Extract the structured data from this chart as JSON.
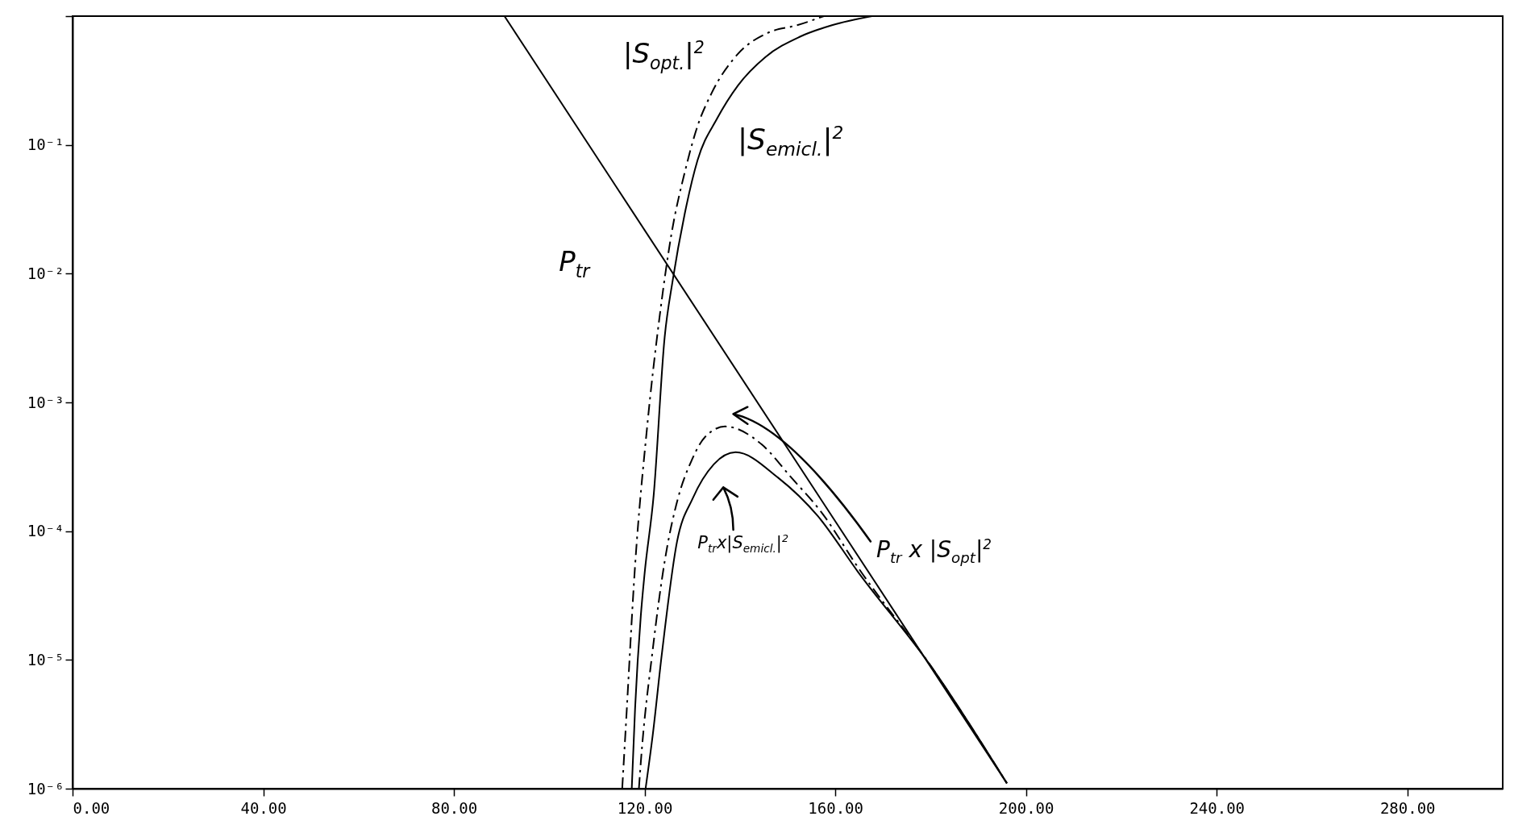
{
  "chart_data": {
    "type": "line",
    "log": "y",
    "legend": false,
    "xlim": [
      0,
      300
    ],
    "ylim": [
      1e-06,
      1
    ],
    "xticks": [
      {
        "value": 0,
        "label": "0.00"
      },
      {
        "value": 40,
        "label": "40.00"
      },
      {
        "value": 80,
        "label": "80.00"
      },
      {
        "value": 120,
        "label": "120.00"
      },
      {
        "value": 160,
        "label": "160.00"
      },
      {
        "value": 200,
        "label": "200.00"
      },
      {
        "value": 240,
        "label": "240.00"
      },
      {
        "value": 280,
        "label": "280.00"
      }
    ],
    "yticks": [
      {
        "value": 1e-06,
        "label": "10⁻⁶"
      },
      {
        "value": 1e-05,
        "label": "10⁻⁵"
      },
      {
        "value": 0.0001,
        "label": "10⁻⁴"
      },
      {
        "value": 0.001,
        "label": "10⁻³"
      },
      {
        "value": 0.01,
        "label": "10⁻²"
      },
      {
        "value": 0.1,
        "label": "10⁻¹"
      },
      {
        "value": 1,
        "label": null
      }
    ],
    "series": [
      {
        "name": "P$_{tr}$",
        "color": "#000000",
        "line_style": "solid",
        "x": [
          90.6,
          196
        ],
        "values": [
          1,
          1.1e-06
        ]
      },
      {
        "name": "|S$_{opt.}$|$^{2}$",
        "color": "#000000",
        "line_style": "dashed",
        "x": [
          115.3,
          116.0,
          118.0,
          120.5,
          123.1,
          125.6,
          128.5,
          131.1,
          134.0,
          139.6,
          145.8,
          152.0,
          157.6
        ],
        "values": [
          1e-06,
          2.8e-06,
          5.4e-05,
          0.00063,
          0.0045,
          0.02,
          0.063,
          0.14,
          0.25,
          0.51,
          0.74,
          0.85,
          1
        ]
      },
      {
        "name": "|S$_{emicl.}$|$^{2}$",
        "color": "#000000",
        "line_style": "solid",
        "x": [
          117.3,
          118.0,
          119.2,
          120.0,
          121.9,
          124.2,
          125.9,
          128.4,
          131.1,
          135.2,
          139.6,
          145.3,
          152.5,
          159.3,
          167.7
        ],
        "values": [
          1e-06,
          4.2e-06,
          2.2e-05,
          4.7e-05,
          0.00019,
          0.0032,
          0.0089,
          0.029,
          0.076,
          0.16,
          0.29,
          0.48,
          0.69,
          0.85,
          1
        ]
      },
      {
        "name": "P$_{tr}$ x |S$_{opt}$|$^{2}$",
        "color": "#000000",
        "line_style": "dashed",
        "x": [
          118.8,
          119.2,
          121.7,
          124.2,
          127.0,
          129.8,
          132.7,
          136.9,
          144.6,
          150.8,
          157.1,
          164.8,
          180,
          196
        ],
        "values": [
          1e-06,
          1.6e-06,
          1.2e-05,
          5.8e-05,
          0.00018,
          0.00035,
          0.00054,
          0.00065,
          0.00047,
          0.00026,
          0.00014,
          5.2e-05,
          9e-06,
          1.1e-06
        ]
      },
      {
        "name": "P$_{tr}$x|S$_{emicl.}$|$^{2}$",
        "color": "#000000",
        "line_style": "solid",
        "x": [
          120.2,
          121.7,
          123.6,
          126.8,
          130.1,
          134.5,
          139.1,
          148.0,
          156.4,
          164.8,
          180,
          196
        ],
        "values": [
          1e-06,
          2.6e-06,
          1.1e-05,
          8.3e-05,
          0.00018,
          0.00033,
          0.00041,
          0.00026,
          0.00013,
          4.8e-05,
          9e-06,
          1.1e-06
        ]
      }
    ]
  }
}
